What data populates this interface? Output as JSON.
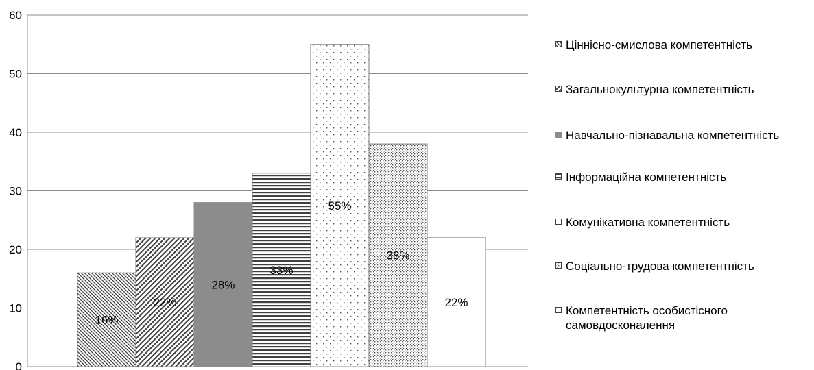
{
  "chart_data": {
    "type": "bar",
    "title": "",
    "xlabel": "",
    "ylabel": "",
    "ylim": [
      0,
      60
    ],
    "yticks": [
      "0",
      "10",
      "20",
      "30",
      "40",
      "50",
      "60"
    ],
    "grid": true,
    "legend_position": "right",
    "series": [
      {
        "name": "Ціннісно-смислова компетентність",
        "value": 16,
        "label": "16%",
        "pattern": "diag-back"
      },
      {
        "name": "Загальнокультурна компетентність",
        "value": 22,
        "label": "22%",
        "pattern": "diag-fwd"
      },
      {
        "name": "Навчально-пізнавальна компетентність",
        "value": 28,
        "label": "28%",
        "pattern": "solid-gray"
      },
      {
        "name": "Інформаційна компетентність",
        "value": 33,
        "label": "33%",
        "pattern": "horizontal"
      },
      {
        "name": "Комунікативна компетентність",
        "value": 55,
        "label": "55%",
        "pattern": "sparse-dots"
      },
      {
        "name": "Соціально-трудова компетентність",
        "value": 38,
        "label": "38%",
        "pattern": "dense-dots"
      },
      {
        "name": "Компетентність особистісного самовдосконалення",
        "value": 22,
        "label": "22%",
        "pattern": "white"
      }
    ]
  },
  "legend": {
    "items": [
      "Ціннісно-смислова компетентність",
      "Загальнокультурна компетентність",
      "Навчально-пізнавальна компетентність",
      "Інформаційна компетентність",
      "Комунікативна компетентність",
      "Соціально-трудова компетентність",
      "Компетентність особистісного самовдосконалення"
    ]
  },
  "colors": {
    "axis": "#8c8c8c",
    "gridline": "#8c8c8c",
    "bar_border": "#7f7f7f",
    "solid_bar": "#8c8c8c",
    "hatch": "#404040"
  }
}
